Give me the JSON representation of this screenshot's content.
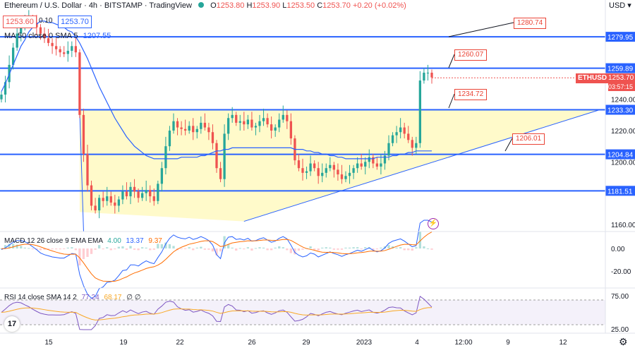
{
  "header": {
    "symbol": "Ethereum / U.S. Dollar · 4h · BITSTAMP · TradingView",
    "o_label": "O",
    "o": "1253.80",
    "h_label": "H",
    "h": "1253.90",
    "l_label": "L",
    "l": "1253.50",
    "c_label": "C",
    "c": "1253.70",
    "chg": "+0.20 (+0.02%)",
    "bid": "1253.60",
    "spread": "0.10",
    "ask": "1253.70",
    "ma_label": "MA 50 close 0 SMA 5",
    "ma_value": "1207.55",
    "currency": "USD"
  },
  "chart_data": {
    "type": "candlestick",
    "ylim": [
      1150,
      1300
    ],
    "y_ticks": [
      "1240.00",
      "1220.00",
      "1200.00",
      "1160.00"
    ],
    "x_ticks": [
      "15",
      "19",
      "22",
      "26",
      "29",
      "2023",
      "4",
      "12:00",
      "9",
      "12"
    ],
    "levels": [
      {
        "value": 1279.95,
        "label": "1279.95"
      },
      {
        "value": 1259.89,
        "label": "1259.89"
      },
      {
        "value": 1233.3,
        "label": "1233.30"
      },
      {
        "value": 1204.84,
        "label": "1204.84"
      },
      {
        "value": 1181.51,
        "label": "1181.51"
      }
    ],
    "callouts": [
      "1280.74",
      "1260.07",
      "1234.72",
      "1206.01"
    ],
    "last_price": {
      "symbol": "ETHUSD",
      "value": "1253.70",
      "countdown": "03:57:15"
    },
    "closes": [
      1243,
      1251,
      1262,
      1273,
      1282,
      1288,
      1290,
      1291,
      1289,
      1286,
      1282,
      1279,
      1276,
      1274,
      1272,
      1270,
      1269,
      1271,
      1274,
      1270,
      1230,
      1205,
      1185,
      1172,
      1169,
      1177,
      1175,
      1178,
      1174,
      1172,
      1176,
      1181,
      1178,
      1184,
      1181,
      1177,
      1180,
      1182,
      1178,
      1175,
      1186,
      1196,
      1210,
      1220,
      1226,
      1222,
      1221,
      1220,
      1223,
      1219,
      1221,
      1225,
      1222,
      1219,
      1212,
      1196,
      1189,
      1218,
      1228,
      1230,
      1225,
      1226,
      1224,
      1227,
      1222,
      1223,
      1226,
      1228,
      1224,
      1220,
      1222,
      1227,
      1230,
      1226,
      1215,
      1201,
      1196,
      1193,
      1194,
      1199,
      1196,
      1191,
      1193,
      1196,
      1198,
      1195,
      1192,
      1189,
      1191,
      1193,
      1196,
      1199,
      1197,
      1200,
      1203,
      1199,
      1197,
      1199,
      1204,
      1212,
      1217,
      1219,
      1222,
      1218,
      1214,
      1209,
      1212,
      1252,
      1257,
      1257,
      1254
    ],
    "ma": [
      1245,
      1250,
      1256,
      1262,
      1268,
      1274,
      1278,
      1283,
      1286,
      1288,
      1290,
      1290,
      1289,
      1289,
      1288,
      1287,
      1286,
      1284,
      1283,
      1280,
      1276,
      1271,
      1266,
      1260,
      1254,
      1248,
      1243,
      1238,
      1233,
      1228,
      1224,
      1220,
      1216,
      1213,
      1210,
      1208,
      1206,
      1204,
      1203,
      1202,
      1202,
      1202,
      1202,
      1202,
      1202,
      1202,
      1203,
      1203,
      1203,
      1203,
      1203,
      1204,
      1204,
      1205,
      1206,
      1207,
      1207,
      1208,
      1208,
      1209,
      1209,
      1209,
      1209,
      1209,
      1209,
      1209,
      1209,
      1209,
      1209,
      1209,
      1209,
      1209,
      1209,
      1209,
      1209,
      1208,
      1208,
      1208,
      1207,
      1207,
      1206,
      1206,
      1205,
      1205,
      1204,
      1204,
      1203,
      1203,
      1202,
      1202,
      1202,
      1202,
      1202,
      1202,
      1202,
      1202,
      1203,
      1203,
      1203,
      1203,
      1204,
      1204,
      1205,
      1205,
      1206,
      1206,
      1207,
      1207,
      1207,
      1207,
      1207
    ],
    "macd": {
      "label": "MACD 12 26 close 9 EMA EMA",
      "hist": "4.00",
      "macd": "13.37",
      "signal": "9.37",
      "y_ticks": [
        "0.00",
        "-20.00"
      ]
    },
    "rsi": {
      "label": "RSI 14 close SMA 14 2",
      "rsi": "77.24",
      "ma": "68.17",
      "extra": "∅ ∅",
      "y_ticks": [
        "75.00",
        "25.00"
      ]
    }
  }
}
